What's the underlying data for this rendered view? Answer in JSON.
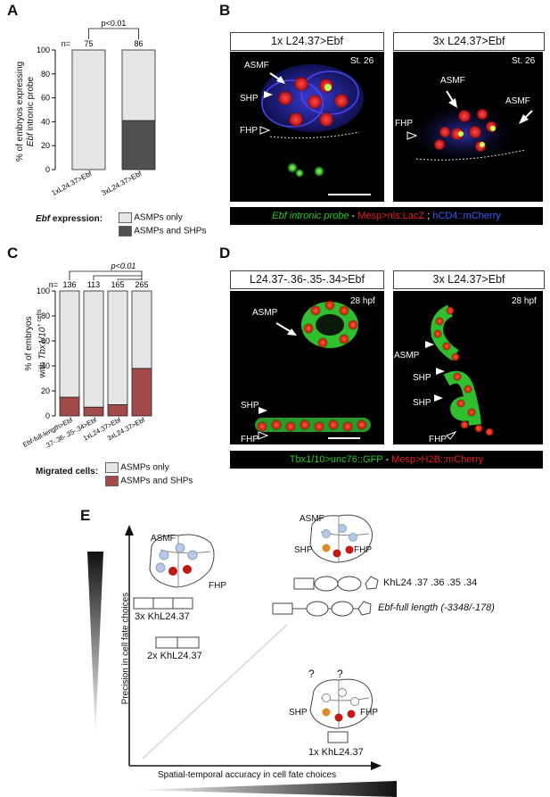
{
  "panels": {
    "A": "A",
    "B": "B",
    "C": "C",
    "D": "D",
    "E": "E"
  },
  "colors": {
    "light_bar": "#e6e6e6",
    "dark_bar": "#505050",
    "red_bar": "#a34b4a",
    "green_text": "#22cc22",
    "red_text": "#e52020",
    "blue_text": "#3a5cff"
  },
  "panelA": {
    "ylabel_line1": "% of embryos expressing",
    "ylabel_line2_italic": "Ebf",
    "ylabel_line2_rest": " intronic probe",
    "n_prefix": "n=",
    "signif": "p<0.01",
    "legend_title_italic": "Ebf",
    "legend_title_rest": " expression:",
    "legend_items": [
      "ASMPs only",
      "ASMPs and SHPs"
    ]
  },
  "panelB": {
    "headers": [
      "1x L24.37>Ebf",
      "3x L24.37>Ebf"
    ],
    "stage": "St. 26",
    "left_labels": [
      "ASMF",
      "SHP",
      "FHP"
    ],
    "right_labels": [
      "ASMF",
      "ASMF",
      "FHP"
    ],
    "legend_parts": [
      "Ebf intronic probe",
      " - ",
      "Mesp>nls:LacZ",
      " ; ",
      "hCD4::mCherry"
    ]
  },
  "panelC": {
    "ylabel_line1": "% of embryos",
    "ylabel_line2_pre": "with ",
    "ylabel_line2_italic": "Tbx1/10",
    "ylabel_line2_post": "+ cells",
    "n_prefix": "n=",
    "signif": "p<0.01",
    "legend_title": "Migrated cells:",
    "legend_items": [
      "ASMPs only",
      "ASMPs and SHPs"
    ]
  },
  "panelD": {
    "headers": [
      "L24.37-.36-.35-.34>Ebf",
      "3x L24.37>Ebf"
    ],
    "stage": "28 hpf",
    "left_labels": [
      "ASMP",
      "SHP",
      "FHP"
    ],
    "right_labels": [
      "ASMP",
      "SHP",
      "SHP",
      "FHP"
    ],
    "legend_parts": [
      "Tbx1/10>unc76::GFP",
      " - ",
      "Mesp>H2B::mCherry"
    ]
  },
  "panelE": {
    "y_axis": "Precision in cell fate choices",
    "x_axis": "Spatial-temporal accuracy in cell fate choices",
    "constructs": [
      "3x KhL24.37",
      "2x KhL24.37",
      "KhL24 .37 .36 .35 .34",
      "1x KhL24.37"
    ],
    "ebf_full_italic": "Ebf-full length (-3348/-178)",
    "cluster_labels": {
      "top_left": [
        "ASMF",
        "FHP"
      ],
      "top_right": [
        "ASMF",
        "SHP",
        "FHP"
      ],
      "bottom": [
        "SHP",
        "FHP"
      ]
    },
    "question": "?"
  },
  "chart_data": [
    {
      "type": "bar",
      "panel": "A",
      "stacked": true,
      "categories": [
        "1xL24.37>Ebf",
        "3xL24.37>Ebf"
      ],
      "n": [
        75,
        86
      ],
      "series": [
        {
          "name": "ASMPs and SHPs",
          "values": [
            0,
            41
          ]
        },
        {
          "name": "ASMPs only",
          "values": [
            100,
            59
          ]
        }
      ],
      "ylim": [
        0,
        100
      ],
      "yticks": [
        0,
        20,
        40,
        60,
        80,
        100
      ],
      "annotation": "p<0.01"
    },
    {
      "type": "bar",
      "panel": "C",
      "stacked": true,
      "categories": [
        "Ebf-full-length>Ebf",
        ".37-.36-.35-.34>Ebf",
        "1xL24.37>Ebf",
        "3xL24.37>Ebf"
      ],
      "n": [
        136,
        113,
        165,
        265
      ],
      "series": [
        {
          "name": "ASMPs and SHPs",
          "values": [
            15,
            7,
            9,
            38
          ]
        },
        {
          "name": "ASMPs only",
          "values": [
            85,
            93,
            91,
            62
          ]
        }
      ],
      "ylim": [
        0,
        100
      ],
      "yticks": [
        0,
        20,
        40,
        60,
        80,
        100
      ],
      "annotation": "p<0.01"
    }
  ]
}
